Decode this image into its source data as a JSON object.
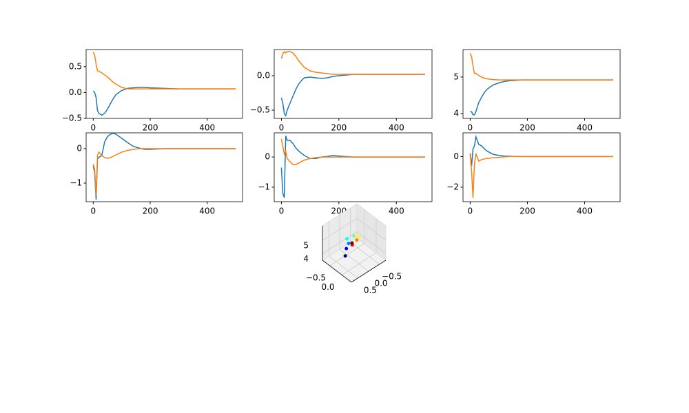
{
  "chart_data": [
    {
      "type": "line",
      "x": [
        0,
        5,
        10,
        15,
        20,
        30,
        40,
        50,
        60,
        70,
        80,
        100,
        120,
        140,
        160,
        180,
        200,
        250,
        300,
        350,
        400,
        450,
        500
      ],
      "series": [
        {
          "color": "#1f77b4",
          "values": [
            0.03,
            0.0,
            -0.1,
            -0.35,
            -0.4,
            -0.44,
            -0.4,
            -0.32,
            -0.22,
            -0.12,
            -0.04,
            0.04,
            0.08,
            0.09,
            0.1,
            0.1,
            0.09,
            0.08,
            0.07,
            0.07,
            0.07,
            0.07,
            0.07
          ]
        },
        {
          "color": "#ff7f0e",
          "values": [
            0.78,
            0.72,
            0.55,
            0.42,
            0.41,
            0.38,
            0.34,
            0.3,
            0.25,
            0.2,
            0.16,
            0.1,
            0.07,
            0.07,
            0.07,
            0.07,
            0.07,
            0.07,
            0.07,
            0.07,
            0.07,
            0.07,
            0.07
          ]
        }
      ],
      "xlim": [
        -25,
        524
      ],
      "ylim": [
        -0.5,
        0.83
      ],
      "xticks": [
        0,
        200,
        400
      ],
      "yticks": [
        {
          "value": -0.5,
          "label": "−0.5"
        },
        {
          "value": 0,
          "label": "0.0"
        },
        {
          "value": 0.5,
          "label": "0.5"
        }
      ]
    },
    {
      "type": "line",
      "x": [
        0,
        5,
        10,
        15,
        20,
        30,
        40,
        50,
        60,
        70,
        80,
        100,
        120,
        140,
        160,
        180,
        200,
        250,
        300,
        350,
        400,
        450,
        500
      ],
      "series": [
        {
          "color": "#1f77b4",
          "values": [
            -0.32,
            -0.4,
            -0.55,
            -0.58,
            -0.5,
            -0.4,
            -0.3,
            -0.2,
            -0.12,
            -0.07,
            -0.03,
            -0.02,
            -0.03,
            -0.04,
            -0.03,
            -0.01,
            0.0,
            0.02,
            0.02,
            0.02,
            0.02,
            0.02,
            0.02
          ]
        },
        {
          "color": "#ff7f0e",
          "values": [
            0.25,
            0.32,
            0.35,
            0.33,
            0.35,
            0.35,
            0.33,
            0.28,
            0.22,
            0.17,
            0.12,
            0.07,
            0.05,
            0.04,
            0.03,
            0.02,
            0.02,
            0.02,
            0.02,
            0.02,
            0.02,
            0.02,
            0.02
          ]
        }
      ],
      "xlim": [
        -25,
        524
      ],
      "ylim": [
        -0.62,
        0.38
      ],
      "xticks": [
        0,
        200,
        400
      ],
      "yticks": [
        {
          "value": -0.5,
          "label": "−0.5"
        },
        {
          "value": 0,
          "label": "0.0"
        }
      ]
    },
    {
      "type": "line",
      "x": [
        0,
        5,
        10,
        15,
        20,
        30,
        40,
        50,
        60,
        70,
        80,
        100,
        120,
        140,
        160,
        180,
        200,
        250,
        300,
        350,
        400,
        450,
        500
      ],
      "series": [
        {
          "color": "#1f77b4",
          "values": [
            4.05,
            4.05,
            3.97,
            3.97,
            4.05,
            4.3,
            4.45,
            4.58,
            4.67,
            4.73,
            4.78,
            4.84,
            4.88,
            4.9,
            4.91,
            4.92,
            4.92,
            4.92,
            4.92,
            4.92,
            4.92,
            4.92,
            4.92
          ]
        },
        {
          "color": "#ff7f0e",
          "values": [
            5.65,
            5.55,
            5.3,
            5.1,
            5.1,
            5.05,
            5.0,
            4.97,
            4.95,
            4.94,
            4.93,
            4.92,
            4.92,
            4.92,
            4.92,
            4.92,
            4.92,
            4.92,
            4.92,
            4.92,
            4.92,
            4.92,
            4.92
          ]
        }
      ],
      "xlim": [
        -25,
        524
      ],
      "ylim": [
        3.87,
        5.75
      ],
      "xticks": [
        0,
        200,
        400
      ],
      "yticks": [
        4,
        5
      ]
    },
    {
      "type": "line",
      "x": [
        0,
        5,
        10,
        15,
        20,
        30,
        40,
        50,
        60,
        70,
        80,
        100,
        120,
        140,
        160,
        180,
        200,
        250,
        300,
        350,
        400,
        450,
        500
      ],
      "series": [
        {
          "color": "#1f77b4",
          "values": [
            -0.5,
            -0.7,
            -1.48,
            -0.3,
            -0.25,
            -0.2,
            0.2,
            0.35,
            0.42,
            0.45,
            0.42,
            0.3,
            0.18,
            0.07,
            0.02,
            -0.02,
            -0.02,
            0,
            0,
            0,
            0,
            0,
            0
          ]
        },
        {
          "color": "#ff7f0e",
          "values": [
            -0.45,
            -0.6,
            -1.35,
            -0.2,
            -0.1,
            -0.2,
            -0.26,
            -0.28,
            -0.26,
            -0.22,
            -0.18,
            -0.1,
            -0.05,
            -0.02,
            0,
            0,
            0,
            0,
            0,
            0,
            0,
            0,
            0
          ]
        }
      ],
      "xlim": [
        -25,
        524
      ],
      "ylim": [
        -1.54,
        0.46
      ],
      "xticks": [
        0,
        200,
        400
      ],
      "yticks": [
        {
          "value": -1,
          "label": "−1"
        },
        0
      ]
    },
    {
      "type": "line",
      "x": [
        0,
        5,
        10,
        15,
        20,
        30,
        40,
        50,
        60,
        70,
        80,
        100,
        120,
        140,
        160,
        180,
        200,
        250,
        300,
        350,
        400,
        450,
        500
      ],
      "series": [
        {
          "color": "#1f77b4",
          "values": [
            -0.35,
            -1.2,
            -1.35,
            0.7,
            0.55,
            0.55,
            0.45,
            0.3,
            0.2,
            0.12,
            0.05,
            -0.05,
            -0.05,
            0,
            0.02,
            0.05,
            0.03,
            0,
            0,
            0,
            0,
            0,
            0
          ]
        },
        {
          "color": "#ff7f0e",
          "values": [
            0.6,
            0.35,
            0.1,
            0.2,
            -0.05,
            -0.15,
            -0.25,
            -0.25,
            -0.2,
            -0.15,
            -0.1,
            -0.05,
            -0.02,
            0,
            0,
            0,
            0,
            0,
            0,
            0,
            0,
            0,
            0
          ]
        }
      ],
      "xlim": [
        -25,
        524
      ],
      "ylim": [
        -1.48,
        0.8
      ],
      "xticks": [
        0,
        200,
        400
      ],
      "yticks": [
        {
          "value": -1,
          "label": "−1"
        },
        0
      ]
    },
    {
      "type": "line",
      "x": [
        0,
        5,
        10,
        15,
        20,
        30,
        40,
        50,
        60,
        70,
        80,
        100,
        120,
        140,
        160,
        180,
        200,
        250,
        300,
        350,
        400,
        450,
        500
      ],
      "series": [
        {
          "color": "#1f77b4",
          "values": [
            0.2,
            -0.6,
            0.5,
            0.7,
            1.3,
            0.8,
            0.7,
            0.5,
            0.35,
            0.25,
            0.15,
            0.08,
            0.03,
            0.02,
            0,
            0,
            0,
            0,
            0,
            0,
            0,
            0,
            0
          ]
        },
        {
          "color": "#ff7f0e",
          "values": [
            0.1,
            -1.0,
            -2.7,
            -0.5,
            0.2,
            -0.3,
            -0.2,
            -0.15,
            -0.12,
            -0.1,
            -0.08,
            -0.05,
            -0.02,
            0,
            0,
            0,
            0,
            0,
            0,
            0,
            0,
            0,
            0
          ]
        }
      ],
      "xlim": [
        -25,
        524
      ],
      "ylim": [
        -2.95,
        1.55
      ],
      "xticks": [
        0,
        200,
        400
      ],
      "yticks": [
        {
          "value": -2,
          "label": "−2"
        },
        0
      ]
    },
    {
      "type": "line3d",
      "x": [
        0.3,
        0.25,
        0.2,
        0.0,
        -0.1,
        -0.1,
        0.1,
        0.2,
        0.1
      ],
      "y": [
        -0.3,
        -0.3,
        -0.25,
        -0.5,
        -0.3,
        -0.1,
        0.0,
        -0.1,
        -0.2
      ],
      "z": [
        4.0,
        4.5,
        4.9,
        4.7,
        5.1,
        5.3,
        5.4,
        5.0,
        4.9
      ],
      "colors": [
        "#00007f",
        "#0000ff",
        "#007fff",
        "#00ffff",
        "#7fff7f",
        "#ffff00",
        "#ff7f00",
        "#ff0000",
        "#7f0000"
      ],
      "xlim": [
        -0.8,
        0.8
      ],
      "ylim": [
        -0.8,
        0.4
      ],
      "zlim": [
        3.5,
        6.1
      ],
      "xticks": [
        {
          "value": -0.5,
          "label": "−0.5"
        },
        {
          "value": 0,
          "label": "0.0"
        },
        {
          "value": 0.5,
          "label": "0.5"
        }
      ],
      "yticks": [
        {
          "value": -0.5,
          "label": "−0.5"
        },
        {
          "value": 0,
          "label": "0.0"
        }
      ],
      "zticks": [
        4,
        5
      ]
    }
  ]
}
